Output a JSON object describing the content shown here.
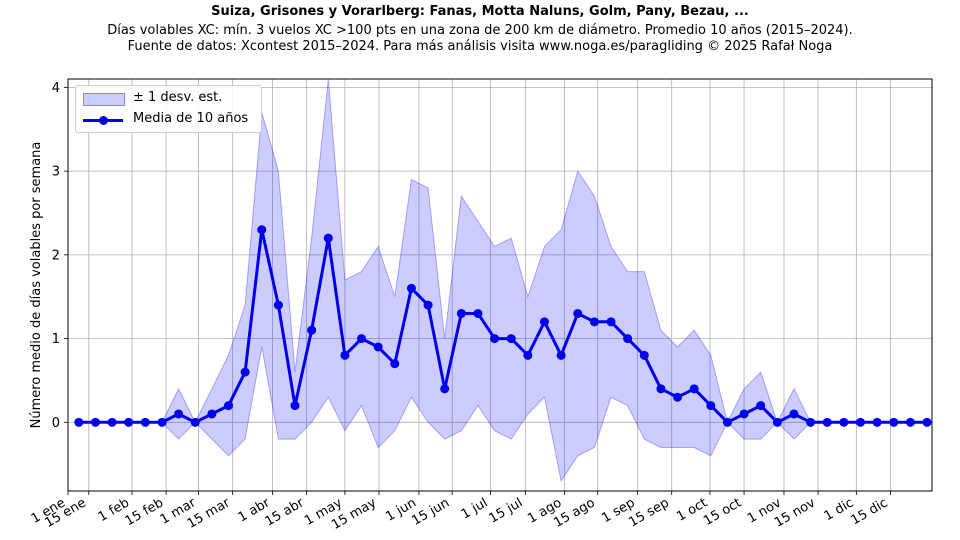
{
  "header": {
    "title": "Suiza, Grisones y Vorarlberg: Fanas, Motta Naluns, Golm, Pany, Bezau, ...",
    "subtitle_line1": "Días volables XC: mín. 3 vuelos XC >100 pts en una zona de 200 km de diámetro. Promedio 10 años (2015–2024).",
    "subtitle_line2": "Fuente de datos: Xcontest 2015–2024. Para más análisis visita www.noga.es/paragliding © 2025 Rafał Noga"
  },
  "legend": {
    "band_label": "± 1 desv. est.",
    "mean_label": "Media de 10 años",
    "placement": "upper-left"
  },
  "colors": {
    "mean_line": "#0000ee",
    "band_fill": "rgba(0,0,255,0.2)",
    "band_edge": "rgba(0,0,255,0.3)",
    "grid": "#b0b0b0"
  },
  "chart_data": {
    "type": "line",
    "ylabel": "Número medio de días volables por semana",
    "xlabel": "",
    "ylim": [
      -0.82,
      4.1
    ],
    "yticks": [
      0,
      1,
      2,
      3,
      4
    ],
    "grid": true,
    "x_week": [
      1,
      2,
      3,
      4,
      5,
      6,
      7,
      8,
      9,
      10,
      11,
      12,
      13,
      14,
      15,
      16,
      17,
      18,
      19,
      20,
      21,
      22,
      23,
      24,
      25,
      26,
      27,
      28,
      29,
      30,
      31,
      32,
      33,
      34,
      35,
      36,
      37,
      38,
      39,
      40,
      41,
      42,
      43,
      44,
      45,
      46,
      47,
      48,
      49,
      50,
      51,
      52
    ],
    "xlim_week": [
      0.35,
      52.3
    ],
    "x_ticks": [
      {
        "label": "1 ene",
        "week": 0.35
      },
      {
        "label": "15 ene",
        "week": 1.6
      },
      {
        "label": "1 feb",
        "week": 4.2
      },
      {
        "label": "15 feb",
        "week": 6.25
      },
      {
        "label": "1 mar",
        "week": 8.2
      },
      {
        "label": "15 mar",
        "week": 10.25
      },
      {
        "label": "1 abr",
        "week": 12.65
      },
      {
        "label": "15 abr",
        "week": 14.7
      },
      {
        "label": "1 may",
        "week": 17.0
      },
      {
        "label": "15 may",
        "week": 19.05
      },
      {
        "label": "1 jun",
        "week": 21.45
      },
      {
        "label": "15 jun",
        "week": 23.45
      },
      {
        "label": "1 jul",
        "week": 25.75
      },
      {
        "label": "15 jul",
        "week": 27.85
      },
      {
        "label": "1 ago",
        "week": 30.2
      },
      {
        "label": "15 ago",
        "week": 32.2
      },
      {
        "label": "1 sep",
        "week": 34.6
      },
      {
        "label": "15 sep",
        "week": 36.65
      },
      {
        "label": "1 oct",
        "week": 38.95
      },
      {
        "label": "15 oct",
        "week": 41.0
      },
      {
        "label": "1 nov",
        "week": 43.4
      },
      {
        "label": "15 nov",
        "week": 45.45
      },
      {
        "label": "1 dic",
        "week": 47.75
      },
      {
        "label": "15 dic",
        "week": 49.8
      }
    ],
    "series": [
      {
        "name": "Media de 10 años",
        "values": [
          0,
          0,
          0,
          0,
          0,
          0,
          0.1,
          0,
          0.1,
          0.2,
          0.6,
          2.3,
          1.4,
          0.2,
          1.1,
          2.2,
          0.8,
          1.0,
          0.9,
          0.7,
          1.6,
          1.4,
          0.4,
          1.3,
          1.3,
          1.0,
          1.0,
          0.8,
          1.2,
          0.8,
          1.3,
          1.2,
          1.2,
          1.0,
          0.8,
          0.4,
          0.3,
          0.4,
          0.2,
          0,
          0.1,
          0.2,
          0,
          0.1,
          0,
          0,
          0,
          0,
          0,
          0,
          0,
          0
        ]
      },
      {
        "name": "± 1 desv. est.",
        "upper": [
          0,
          0,
          0,
          0,
          0,
          0,
          0.4,
          0,
          0.4,
          0.8,
          1.4,
          3.7,
          3.0,
          0.6,
          2.2,
          4.1,
          1.7,
          1.8,
          2.1,
          1.5,
          2.9,
          2.8,
          1.0,
          2.7,
          2.4,
          2.1,
          2.2,
          1.5,
          2.1,
          2.3,
          3.0,
          2.7,
          2.1,
          1.8,
          1.8,
          1.1,
          0.9,
          1.1,
          0.8,
          0,
          0.4,
          0.6,
          0,
          0.4,
          0,
          0,
          0,
          0,
          0,
          0,
          0,
          0
        ],
        "lower": [
          0,
          0,
          0,
          0,
          0,
          0,
          -0.2,
          0,
          -0.2,
          -0.4,
          -0.2,
          0.9,
          -0.2,
          -0.2,
          0,
          0.3,
          -0.1,
          0.2,
          -0.3,
          -0.1,
          0.3,
          0,
          -0.2,
          -0.1,
          0.2,
          -0.1,
          -0.2,
          0.1,
          0.3,
          -0.7,
          -0.4,
          -0.3,
          0.3,
          0.2,
          -0.2,
          -0.3,
          -0.3,
          -0.3,
          -0.4,
          0,
          -0.2,
          -0.2,
          0,
          -0.2,
          0,
          0,
          0,
          0,
          0,
          0,
          0,
          0
        ]
      }
    ]
  }
}
